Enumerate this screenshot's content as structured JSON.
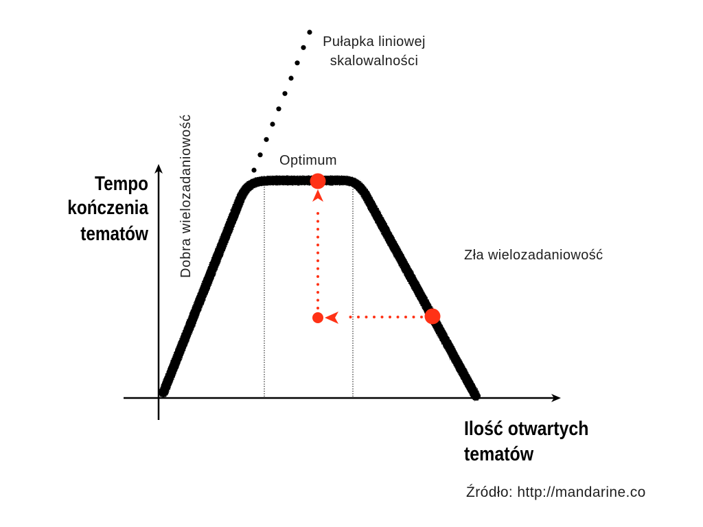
{
  "axes": {
    "y_label": [
      "Tempo",
      "kończenia",
      "tematów"
    ],
    "x_label": [
      "Ilość otwartych",
      "tematów"
    ]
  },
  "annotations": {
    "linear_trap": [
      "Pułapka liniowej",
      "skalowalności"
    ],
    "optimum": "Optimum",
    "good_multitasking": "Dobra wielozadaniowość",
    "bad_multitasking": "Zła wielozadaniowość"
  },
  "source": "Źródło: http://mandarine.co",
  "colors": {
    "background": "#ffffff",
    "curve": "#000000",
    "highlight": "#ff3216"
  }
}
